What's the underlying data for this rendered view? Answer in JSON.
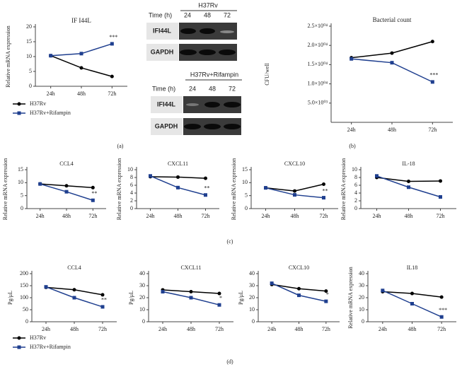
{
  "chart_data": [
    {
      "type": "line",
      "title": "IF I44L",
      "y_label": "Relative mRNA expression",
      "categories": [
        "24h",
        "48h",
        "72h"
      ],
      "ylim": [
        0,
        20
      ],
      "yticks": [
        0,
        5,
        10,
        15,
        20
      ],
      "legend": true,
      "annotation": "***",
      "series": [
        {
          "name": "H37Rv",
          "color": "#000000",
          "marker": "circle",
          "values": [
            10.3,
            6.2,
            3.3
          ]
        },
        {
          "name": "H37Rv+Rifampin",
          "color": "#1f3f8f",
          "marker": "square",
          "values": [
            10.3,
            11,
            14.3
          ]
        }
      ]
    },
    {
      "type": "line",
      "title": "Bacterial count",
      "y_label": "CFU/well",
      "categories": [
        "24h",
        "48h",
        "72h"
      ],
      "ylim": [
        0,
        25000
      ],
      "yticks": [
        {
          "value": 5000,
          "label": "5.0×10⁰³"
        },
        {
          "value": 10000,
          "label": "1.0×10⁰⁴"
        },
        {
          "value": 15000,
          "label": "1.5×10⁰⁴"
        },
        {
          "value": 20000,
          "label": "2.0×10⁰⁴"
        },
        {
          "value": 25000,
          "label": "2.5×10⁰⁴"
        }
      ],
      "annotation": "***",
      "series": [
        {
          "color": "#000000",
          "marker": "circle",
          "values": [
            16800,
            18000,
            21000
          ]
        },
        {
          "color": "#1f3f8f",
          "marker": "square",
          "values": [
            16500,
            15500,
            10500
          ]
        }
      ]
    },
    {
      "type": "line",
      "title": "CCL4",
      "y_label": "Relative mRNA expression",
      "categories": [
        "24h",
        "48h",
        "72h"
      ],
      "ylim": [
        0,
        15
      ],
      "yticks": [
        0,
        5,
        10,
        15
      ],
      "annotation": "**",
      "series": [
        {
          "color": "#000000",
          "marker": "circle",
          "values": [
            9.5,
            8.8,
            8.1
          ]
        },
        {
          "color": "#1f3f8f",
          "marker": "square",
          "values": [
            9.5,
            6.5,
            3.2
          ]
        }
      ]
    },
    {
      "type": "line",
      "title": "CXCL11",
      "y_label": "Relative mRNA expression",
      "categories": [
        "24h",
        "48h",
        "72h"
      ],
      "ylim": [
        0,
        10
      ],
      "yticks": [
        0,
        2,
        4,
        6,
        8,
        10
      ],
      "annotation": "**",
      "series": [
        {
          "color": "#000000",
          "marker": "circle",
          "values": [
            8.2,
            8.1,
            7.8
          ]
        },
        {
          "color": "#1f3f8f",
          "marker": "square",
          "values": [
            8.4,
            5.4,
            3.5
          ]
        }
      ]
    },
    {
      "type": "line",
      "title": "CXCL10",
      "y_label": "Relative mRNA expression",
      "categories": [
        "24h",
        "48h",
        "72h"
      ],
      "ylim": [
        0,
        15
      ],
      "yticks": [
        0,
        5,
        10,
        15
      ],
      "annotation": "**",
      "series": [
        {
          "color": "#000000",
          "marker": "circle",
          "values": [
            8,
            6.8,
            9.4
          ]
        },
        {
          "color": "#1f3f8f",
          "marker": "square",
          "values": [
            8,
            5.3,
            4.2
          ]
        }
      ]
    },
    {
      "type": "line",
      "title": "IL-18",
      "y_label": "Relative mRNA expression",
      "categories": [
        "24h",
        "48h",
        "72h"
      ],
      "ylim": [
        0,
        10
      ],
      "yticks": [
        0,
        2,
        4,
        6,
        8,
        10
      ],
      "series": [
        {
          "color": "#000000",
          "marker": "circle",
          "values": [
            8,
            7,
            7.1
          ]
        },
        {
          "color": "#1f3f8f",
          "marker": "square",
          "values": [
            8.4,
            5.5,
            3
          ]
        }
      ]
    },
    {
      "type": "line",
      "title": "CCL4",
      "y_label": "Pg/μL",
      "categories": [
        "24h",
        "48h",
        "72h"
      ],
      "ylim": [
        0,
        200
      ],
      "yticks": [
        0,
        50,
        100,
        150,
        200
      ],
      "annotation": "**",
      "legend": true,
      "series": [
        {
          "name": "H37Rv",
          "color": "#000000",
          "marker": "circle",
          "values": [
            143,
            133,
            112
          ]
        },
        {
          "name": "H37Rv+Rifampin",
          "color": "#1f3f8f",
          "marker": "square",
          "values": [
            145,
            100,
            62
          ]
        }
      ]
    },
    {
      "type": "line",
      "title": "CXCL11",
      "y_label": "Pg/μL",
      "categories": [
        "24h",
        "48h",
        "72h"
      ],
      "ylim": [
        0,
        40
      ],
      "yticks": [
        0,
        10,
        20,
        30,
        40
      ],
      "annotation": "*",
      "series": [
        {
          "color": "#000000",
          "marker": "circle",
          "values": [
            26.5,
            25,
            23.5
          ]
        },
        {
          "color": "#1f3f8f",
          "marker": "square",
          "values": [
            25,
            20,
            14
          ]
        }
      ]
    },
    {
      "type": "line",
      "title": "CXCL10",
      "y_label": "Pg/μL",
      "categories": [
        "24h",
        "48h",
        "72h"
      ],
      "ylim": [
        0,
        40
      ],
      "yticks": [
        0,
        10,
        20,
        30,
        40
      ],
      "annotation": "*",
      "series": [
        {
          "color": "#000000",
          "marker": "circle",
          "values": [
            31,
            27.5,
            25.5
          ]
        },
        {
          "color": "#1f3f8f",
          "marker": "square",
          "values": [
            32,
            22,
            17
          ]
        }
      ]
    },
    {
      "type": "line",
      "title": "IL18",
      "y_label": "Relative mRNA expression",
      "categories": [
        "24h",
        "48h",
        "72h"
      ],
      "ylim": [
        0,
        40
      ],
      "yticks": [
        0,
        10,
        20,
        30,
        40
      ],
      "annotation": "***",
      "series": [
        {
          "color": "#000000",
          "marker": "circle",
          "values": [
            25,
            23.5,
            20.5
          ]
        },
        {
          "color": "#1f3f8f",
          "marker": "square",
          "values": [
            26,
            15,
            4
          ]
        }
      ]
    }
  ],
  "panel_labels": [
    "(a)",
    "(b)",
    "(c)",
    "(d)"
  ],
  "blots": [
    {
      "group": "H37Rv",
      "time_label": "Time (h)",
      "times": [
        "24",
        "48",
        "72"
      ],
      "rows": [
        "IFI44L",
        "GAPDH"
      ]
    },
    {
      "group": "H37Rv+Rifampin",
      "time_label": "Time (h)",
      "times": [
        "24",
        "48",
        "72"
      ],
      "rows": [
        "IFI44L",
        "GAPDH"
      ]
    }
  ]
}
